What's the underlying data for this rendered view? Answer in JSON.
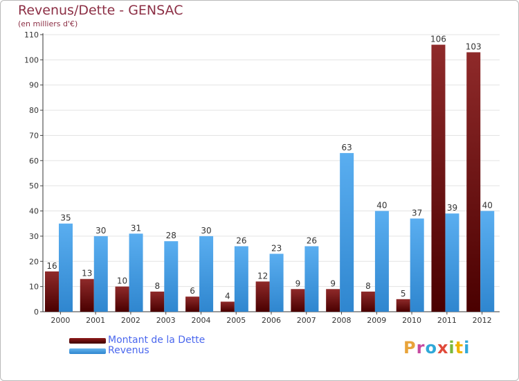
{
  "chart_data": {
    "type": "bar",
    "title": "Revenus/Dette - GENSAC",
    "subtitle": "(en milliers d'€)",
    "categories": [
      "2000",
      "2001",
      "2002",
      "2003",
      "2004",
      "2005",
      "2006",
      "2007",
      "2008",
      "2009",
      "2010",
      "2011",
      "2012"
    ],
    "series": [
      {
        "name": "Montant de la Dette",
        "color": "#7a1010",
        "values": [
          16,
          13,
          10,
          8,
          6,
          4,
          12,
          9,
          9,
          8,
          5,
          106,
          103
        ]
      },
      {
        "name": "Revenus",
        "color": "#4aa3e8",
        "values": [
          35,
          30,
          31,
          28,
          30,
          26,
          23,
          26,
          63,
          40,
          37,
          39,
          40
        ]
      }
    ],
    "ylim": [
      0,
      110
    ],
    "yticks": [
      0,
      10,
      20,
      30,
      40,
      50,
      60,
      70,
      80,
      90,
      100,
      110
    ],
    "grid": true,
    "legend": "bottom-left"
  },
  "logo": {
    "text": "Proxiti",
    "colors": [
      "#e8a33a",
      "#c64aa0",
      "#2fa8d8",
      "#e04a3a",
      "#7ab83c",
      "#f0b400",
      "#2fa8d8"
    ]
  }
}
